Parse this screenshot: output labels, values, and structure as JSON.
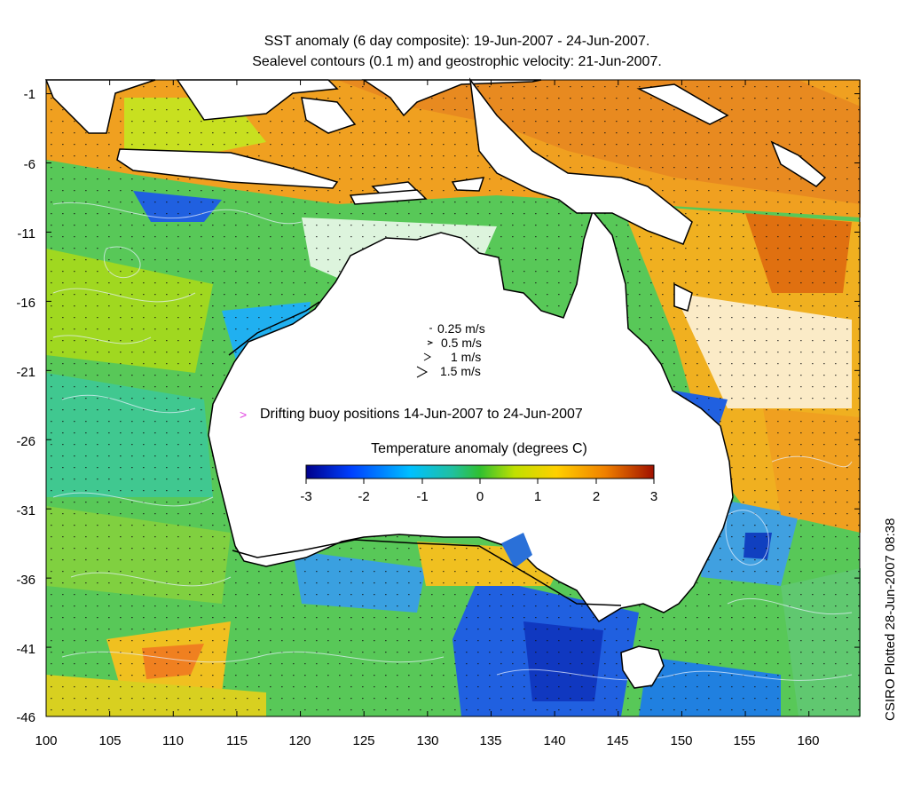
{
  "title": {
    "line1": "SST anomaly (6 day composite): 19-Jun-2007 - 24-Jun-2007.",
    "line2": "Sealevel contours (0.1 m) and geostrophic velocity: 21-Jun-2007."
  },
  "map": {
    "lon_range": [
      100,
      164
    ],
    "lat_range": [
      -46,
      0
    ],
    "x_ticks": [
      "100",
      "105",
      "110",
      "115",
      "120",
      "125",
      "130",
      "135",
      "140",
      "145",
      "150",
      "155",
      "160"
    ],
    "y_ticks": [
      "-1",
      "-6",
      "-11",
      "-16",
      "-21",
      "-26",
      "-31",
      "-36",
      "-41",
      "-46"
    ]
  },
  "velocity_legend": [
    "0.25 m/s",
    "0.5 m/s",
    "1 m/s",
    "1.5 m/s"
  ],
  "buoy_legend": {
    "marker": ">",
    "label": "Drifting buoy positions 14-Jun-2007 to 24-Jun-2007",
    "color": "#e040e0"
  },
  "colorbar": {
    "title": "Temperature anomaly (degrees C)",
    "min": -3,
    "max": 3,
    "ticks": [
      "-3",
      "-2",
      "-1",
      "0",
      "1",
      "2",
      "3"
    ],
    "colors": [
      "#00008b",
      "#0040ff",
      "#00c0ff",
      "#20c0a0",
      "#30c030",
      "#c0e000",
      "#ffd000",
      "#f08000",
      "#a01000"
    ]
  },
  "credit": "CSIRO Plotted 28-Jun-2007 08:38"
}
